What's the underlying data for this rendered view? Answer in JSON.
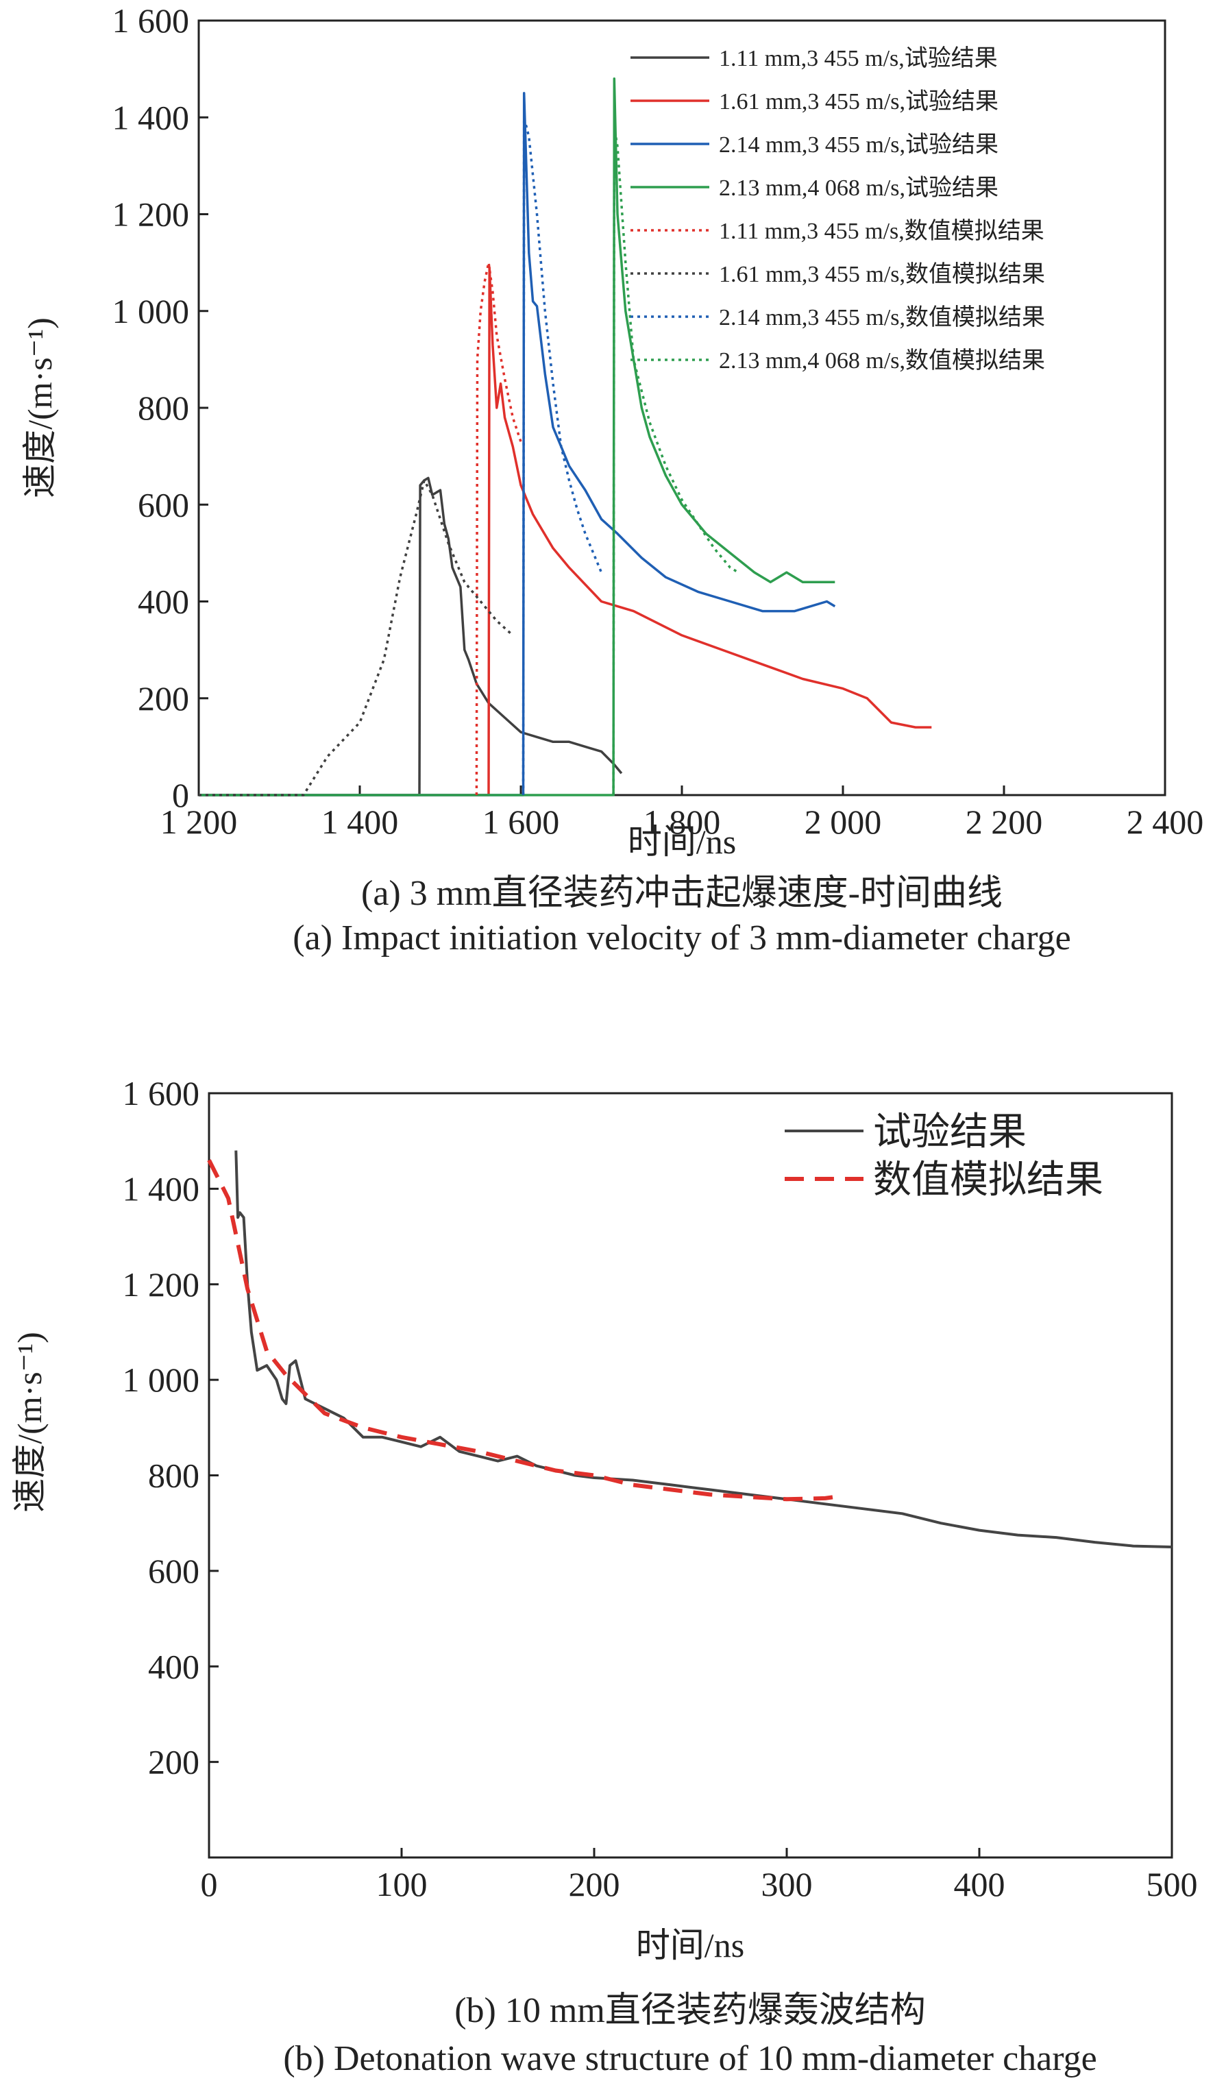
{
  "chart_data": [
    {
      "type": "line",
      "xlabel": "时间/ns",
      "ylabel": "速度/(m·s⁻¹)",
      "xlim": [
        1200,
        2400
      ],
      "ylim": [
        0,
        1600
      ],
      "xticks": [
        "1 200",
        "1 400",
        "1 600",
        "1 800",
        "2 000",
        "2 200",
        "2 400"
      ],
      "yticks": [
        "0",
        "200",
        "400",
        "600",
        "800",
        "1 000",
        "1 200",
        "1 400",
        "1 600"
      ],
      "legend_position": "top-right",
      "series": [
        {
          "name": "1.11 mm,3 455 m/s,试验结果",
          "color": "#404040",
          "style": "solid",
          "x": [
            1200,
            1474,
            1475,
            1480,
            1485,
            1490,
            1500,
            1505,
            1510,
            1515,
            1520,
            1525,
            1530,
            1535,
            1545,
            1560,
            1580,
            1600,
            1620,
            1640,
            1660,
            1680,
            1700,
            1715,
            1725
          ],
          "y": [
            0,
            0,
            640,
            650,
            655,
            620,
            630,
            560,
            530,
            470,
            450,
            430,
            300,
            280,
            230,
            190,
            160,
            130,
            120,
            110,
            110,
            100,
            90,
            65,
            45
          ]
        },
        {
          "name": "1.61 mm,3 455 m/s,试验结果",
          "color": "#e0302b",
          "style": "solid",
          "x": [
            1200,
            1560,
            1561,
            1565,
            1570,
            1575,
            1580,
            1590,
            1600,
            1615,
            1640,
            1660,
            1700,
            1740,
            1800,
            1850,
            1900,
            1950,
            2000,
            2030,
            2060,
            2090,
            2110
          ],
          "y": [
            0,
            0,
            1090,
            930,
            800,
            850,
            780,
            720,
            640,
            580,
            510,
            470,
            400,
            380,
            330,
            300,
            270,
            240,
            220,
            200,
            150,
            140,
            140
          ]
        },
        {
          "name": "2.14 mm,3 455 m/s,试验结果",
          "color": "#1f5fb4",
          "style": "solid",
          "x": [
            1200,
            1603,
            1604,
            1610,
            1615,
            1620,
            1630,
            1640,
            1650,
            1660,
            1680,
            1700,
            1720,
            1750,
            1780,
            1820,
            1860,
            1900,
            1940,
            1980,
            1990
          ],
          "y": [
            0,
            0,
            1450,
            1120,
            1020,
            1010,
            870,
            760,
            720,
            680,
            630,
            570,
            540,
            490,
            450,
            420,
            400,
            380,
            380,
            400,
            390
          ]
        },
        {
          "name": "2.13 mm,4 068 m/s,试验结果",
          "color": "#2e9e4f",
          "style": "solid",
          "x": [
            1200,
            1715,
            1716,
            1720,
            1730,
            1740,
            1750,
            1760,
            1780,
            1800,
            1830,
            1860,
            1890,
            1910,
            1930,
            1950,
            1970,
            1990
          ],
          "y": [
            0,
            0,
            1480,
            1200,
            1000,
            900,
            800,
            740,
            660,
            600,
            540,
            500,
            460,
            440,
            460,
            440,
            440,
            440
          ]
        },
        {
          "name": "1.11 mm,3 455 m/s,数值模拟结果",
          "color": "#e0302b",
          "style": "dotted",
          "x": [
            1545,
            1546,
            1550,
            1555,
            1560,
            1565,
            1570,
            1580,
            1590,
            1600
          ],
          "y": [
            0,
            900,
            1000,
            1060,
            1100,
            1040,
            950,
            860,
            780,
            730
          ]
        },
        {
          "name": "1.61 mm,3 455 m/s,数值模拟结果",
          "color": "#404040",
          "style": "dotted",
          "x": [
            1200,
            1330,
            1360,
            1400,
            1430,
            1450,
            1470,
            1480,
            1490,
            1510,
            1530,
            1550,
            1570,
            1590
          ],
          "y": [
            0,
            0,
            80,
            150,
            280,
            450,
            580,
            650,
            620,
            520,
            440,
            400,
            360,
            330
          ]
        },
        {
          "name": "2.14 mm,3 455 m/s,数值模拟结果",
          "color": "#1f5fb4",
          "style": "dotted",
          "x": [
            1603,
            1604,
            1610,
            1620,
            1630,
            1640,
            1650,
            1660,
            1670,
            1680,
            1690,
            1700
          ],
          "y": [
            0,
            1400,
            1360,
            1200,
            1000,
            850,
            720,
            650,
            590,
            540,
            500,
            460
          ]
        },
        {
          "name": "2.13 mm,4 068 m/s,数值模拟结果",
          "color": "#2e9e4f",
          "style": "dotted",
          "x": [
            1715,
            1716,
            1720,
            1730,
            1740,
            1760,
            1780,
            1800,
            1820,
            1840,
            1860,
            1870
          ],
          "y": [
            0,
            1380,
            1340,
            1100,
            900,
            770,
            680,
            610,
            560,
            510,
            470,
            460
          ]
        }
      ]
    },
    {
      "type": "line",
      "xlabel": "时间/ns",
      "ylabel": "速度/(m·s⁻¹)",
      "xlim": [
        0,
        500
      ],
      "ylim": [
        0,
        1600
      ],
      "xticks": [
        "0",
        "100",
        "200",
        "300",
        "400",
        "500"
      ],
      "yticks": [
        "200",
        "400",
        "600",
        "800",
        "1 000",
        "1 200",
        "1 400",
        "1 600"
      ],
      "legend_position": "top-right",
      "series": [
        {
          "name": "试验结果",
          "color": "#444444",
          "style": "solid",
          "x": [
            14,
            15,
            16,
            18,
            20,
            22,
            25,
            30,
            35,
            38,
            40,
            42,
            45,
            50,
            55,
            60,
            70,
            75,
            80,
            90,
            100,
            110,
            120,
            130,
            140,
            150,
            160,
            170,
            180,
            190,
            200,
            220,
            240,
            260,
            280,
            300,
            320,
            340,
            360,
            380,
            400,
            420,
            440,
            460,
            480,
            500
          ],
          "y": [
            1480,
            1340,
            1350,
            1340,
            1200,
            1100,
            1020,
            1030,
            1000,
            960,
            950,
            1030,
            1040,
            960,
            950,
            940,
            920,
            900,
            880,
            880,
            870,
            860,
            880,
            850,
            840,
            830,
            840,
            820,
            810,
            800,
            795,
            790,
            780,
            770,
            760,
            750,
            740,
            730,
            720,
            700,
            685,
            675,
            670,
            660,
            652,
            650
          ]
        },
        {
          "name": "数值模拟结果",
          "color": "#e0302b",
          "style": "dashed",
          "x": [
            0,
            10,
            20,
            30,
            40,
            60,
            80,
            100,
            120,
            140,
            160,
            180,
            200,
            220,
            240,
            260,
            280,
            300,
            320,
            325
          ],
          "y": [
            1460,
            1380,
            1190,
            1060,
            1010,
            930,
            900,
            880,
            865,
            850,
            830,
            810,
            800,
            780,
            770,
            760,
            755,
            750,
            752,
            755
          ]
        }
      ]
    }
  ],
  "captions": {
    "a_cn": "(a) 3 mm直径装药冲击起爆速度-时间曲线",
    "a_en": "(a) Impact initiation velocity of 3 mm-diameter charge",
    "b_cn": "(b) 10 mm直径装药爆轰波结构",
    "b_en": "(b) Detonation wave structure of 10 mm-diameter charge"
  }
}
